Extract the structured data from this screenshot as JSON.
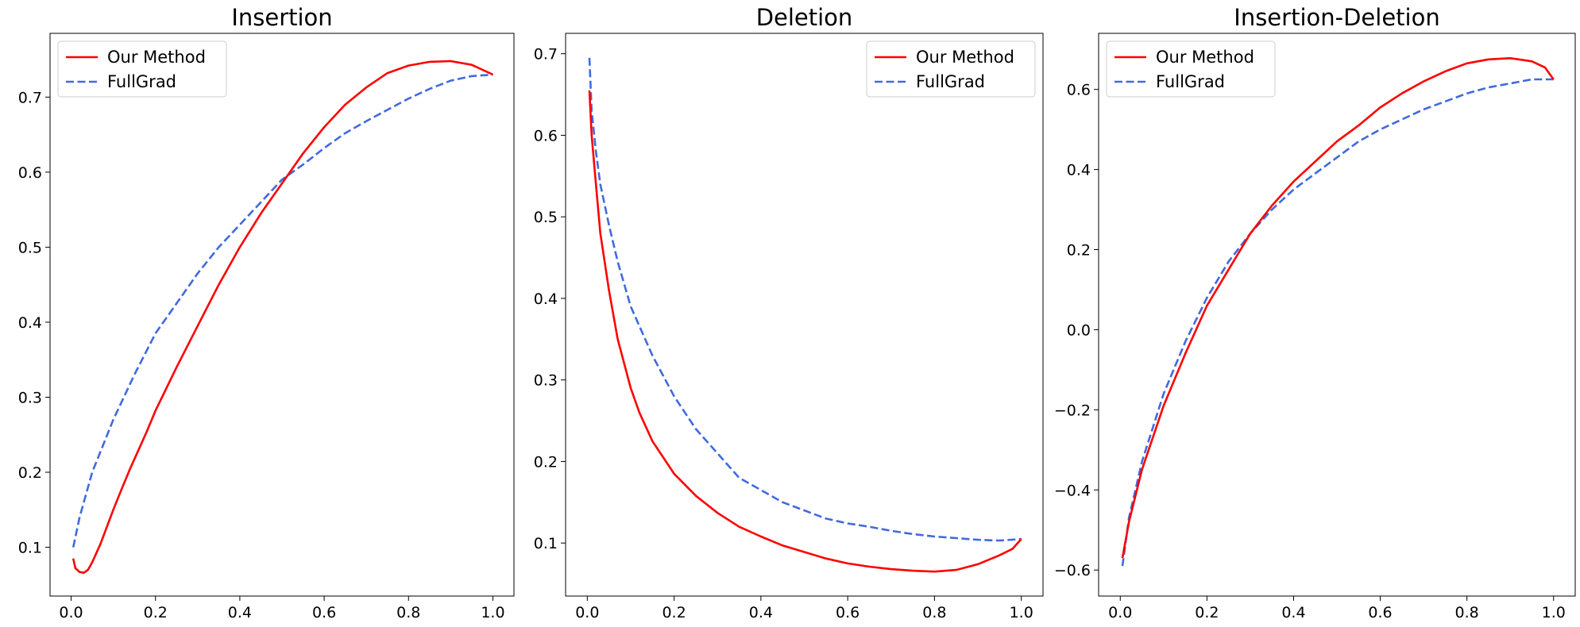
{
  "colors": {
    "our_method": "#ff0000",
    "fullgrad": "#4169e1"
  },
  "chart_data": [
    {
      "type": "line",
      "title": "Insertion",
      "xlabel": "",
      "ylabel": "",
      "xlim": [
        -0.05,
        1.05
      ],
      "ylim": [
        0.035,
        0.785
      ],
      "xticks": [
        "0.0",
        "0.2",
        "0.4",
        "0.6",
        "0.8",
        "1.0"
      ],
      "yticks": [
        "0.1",
        "0.2",
        "0.3",
        "0.4",
        "0.5",
        "0.6",
        "0.7"
      ],
      "grid": false,
      "legend": "upper-left",
      "series": [
        {
          "name": "Our Method",
          "style": "solid",
          "x": [
            0.005,
            0.01,
            0.02,
            0.03,
            0.04,
            0.05,
            0.07,
            0.1,
            0.12,
            0.14,
            0.16,
            0.18,
            0.2,
            0.25,
            0.3,
            0.35,
            0.4,
            0.45,
            0.5,
            0.55,
            0.6,
            0.65,
            0.7,
            0.75,
            0.8,
            0.85,
            0.9,
            0.95,
            1.0
          ],
          "y": [
            0.085,
            0.072,
            0.067,
            0.066,
            0.07,
            0.08,
            0.105,
            0.15,
            0.178,
            0.205,
            0.23,
            0.255,
            0.282,
            0.34,
            0.395,
            0.45,
            0.5,
            0.545,
            0.585,
            0.625,
            0.66,
            0.69,
            0.713,
            0.732,
            0.742,
            0.747,
            0.748,
            0.743,
            0.73
          ]
        },
        {
          "name": "FullGrad",
          "style": "dashed",
          "x": [
            0.005,
            0.02,
            0.05,
            0.1,
            0.15,
            0.2,
            0.25,
            0.3,
            0.35,
            0.4,
            0.45,
            0.5,
            0.55,
            0.6,
            0.65,
            0.7,
            0.75,
            0.8,
            0.85,
            0.9,
            0.95,
            1.0
          ],
          "y": [
            0.1,
            0.14,
            0.2,
            0.27,
            0.33,
            0.385,
            0.425,
            0.465,
            0.5,
            0.53,
            0.56,
            0.59,
            0.61,
            0.632,
            0.652,
            0.668,
            0.683,
            0.698,
            0.711,
            0.722,
            0.728,
            0.73
          ]
        }
      ]
    },
    {
      "type": "line",
      "title": "Deletion",
      "xlabel": "",
      "ylabel": "",
      "xlim": [
        -0.05,
        1.05
      ],
      "ylim": [
        0.035,
        0.725
      ],
      "xticks": [
        "0.0",
        "0.2",
        "0.4",
        "0.6",
        "0.8",
        "1.0"
      ],
      "yticks": [
        "0.1",
        "0.2",
        "0.3",
        "0.4",
        "0.5",
        "0.6",
        "0.7"
      ],
      "grid": false,
      "legend": "upper-right",
      "series": [
        {
          "name": "Our Method",
          "style": "solid",
          "x": [
            0.005,
            0.01,
            0.02,
            0.03,
            0.05,
            0.07,
            0.1,
            0.12,
            0.15,
            0.2,
            0.25,
            0.3,
            0.35,
            0.4,
            0.45,
            0.5,
            0.55,
            0.6,
            0.65,
            0.7,
            0.75,
            0.8,
            0.85,
            0.9,
            0.95,
            0.98,
            1.0
          ],
          "y": [
            0.655,
            0.6,
            0.54,
            0.48,
            0.41,
            0.35,
            0.29,
            0.26,
            0.225,
            0.185,
            0.158,
            0.137,
            0.12,
            0.108,
            0.097,
            0.089,
            0.081,
            0.075,
            0.071,
            0.068,
            0.066,
            0.065,
            0.067,
            0.074,
            0.085,
            0.093,
            0.105
          ]
        },
        {
          "name": "FullGrad",
          "style": "dashed",
          "x": [
            0.005,
            0.01,
            0.02,
            0.03,
            0.05,
            0.07,
            0.1,
            0.15,
            0.2,
            0.25,
            0.3,
            0.35,
            0.4,
            0.45,
            0.5,
            0.55,
            0.6,
            0.65,
            0.7,
            0.75,
            0.8,
            0.85,
            0.9,
            0.95,
            1.0
          ],
          "y": [
            0.695,
            0.63,
            0.58,
            0.54,
            0.49,
            0.445,
            0.39,
            0.33,
            0.28,
            0.24,
            0.21,
            0.18,
            0.165,
            0.15,
            0.14,
            0.13,
            0.124,
            0.12,
            0.115,
            0.111,
            0.108,
            0.106,
            0.104,
            0.103,
            0.105
          ]
        }
      ]
    },
    {
      "type": "line",
      "title": "Insertion-Deletion",
      "xlabel": "",
      "ylabel": "",
      "xlim": [
        -0.05,
        1.05
      ],
      "ylim": [
        -0.665,
        0.74
      ],
      "xticks": [
        "0.0",
        "0.2",
        "0.4",
        "0.6",
        "0.8",
        "1.0"
      ],
      "yticks": [
        "−0.6",
        "−0.4",
        "−0.2",
        "0.0",
        "0.2",
        "0.4",
        "0.6"
      ],
      "grid": false,
      "legend": "upper-left",
      "series": [
        {
          "name": "Our Method",
          "style": "solid",
          "x": [
            0.005,
            0.02,
            0.05,
            0.1,
            0.15,
            0.2,
            0.25,
            0.3,
            0.35,
            0.4,
            0.45,
            0.5,
            0.55,
            0.6,
            0.65,
            0.7,
            0.75,
            0.8,
            0.85,
            0.9,
            0.95,
            0.98,
            1.0
          ],
          "y": [
            -0.57,
            -0.48,
            -0.35,
            -0.19,
            -0.06,
            0.06,
            0.15,
            0.24,
            0.31,
            0.37,
            0.42,
            0.47,
            0.51,
            0.555,
            0.59,
            0.62,
            0.645,
            0.665,
            0.675,
            0.678,
            0.67,
            0.655,
            0.625
          ]
        },
        {
          "name": "FullGrad",
          "style": "dashed",
          "x": [
            0.005,
            0.02,
            0.05,
            0.1,
            0.15,
            0.2,
            0.25,
            0.3,
            0.35,
            0.4,
            0.45,
            0.5,
            0.55,
            0.6,
            0.65,
            0.7,
            0.75,
            0.8,
            0.85,
            0.9,
            0.95,
            1.0
          ],
          "y": [
            -0.59,
            -0.47,
            -0.33,
            -0.16,
            -0.03,
            0.08,
            0.17,
            0.24,
            0.3,
            0.35,
            0.39,
            0.43,
            0.47,
            0.5,
            0.525,
            0.55,
            0.57,
            0.59,
            0.605,
            0.615,
            0.625,
            0.625
          ]
        }
      ]
    }
  ]
}
